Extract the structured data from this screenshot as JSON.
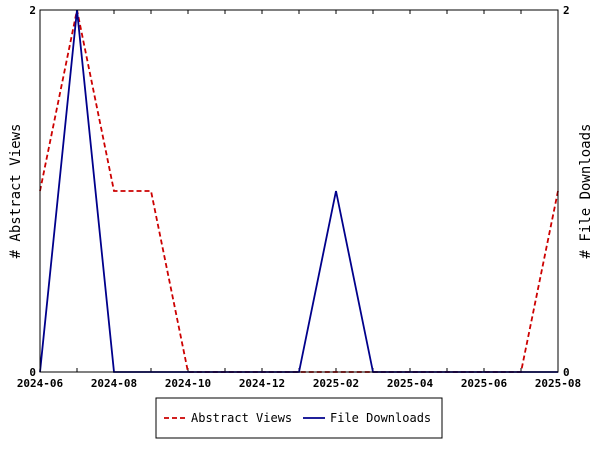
{
  "chart_data": {
    "type": "line",
    "x": [
      "2024-06",
      "2024-07",
      "2024-08",
      "2024-09",
      "2024-10",
      "2024-11",
      "2024-12",
      "2025-01",
      "2025-02",
      "2025-03",
      "2025-04",
      "2025-05",
      "2025-06",
      "2025-07",
      "2025-08"
    ],
    "x_tick_labels": [
      "2024-06",
      "2024-08",
      "2024-10",
      "2024-12",
      "2025-02",
      "2025-04",
      "2025-06",
      "2025-08"
    ],
    "series": [
      {
        "name": "Abstract Views",
        "values": [
          1,
          2,
          1,
          1,
          0,
          0,
          0,
          0,
          0,
          0,
          0,
          0,
          0,
          0,
          1
        ],
        "color": "#cc0000",
        "style": "dashed",
        "axis": "left"
      },
      {
        "name": "File Downloads",
        "values": [
          0,
          2,
          0,
          0,
          0,
          0,
          0,
          0,
          1,
          0,
          0,
          0,
          0,
          0,
          0
        ],
        "color": "#00008b",
        "style": "solid",
        "axis": "right"
      }
    ],
    "ylabel_left": "# Abstract Views",
    "ylabel_right": "# File Downloads",
    "ylim_left": [
      0,
      2
    ],
    "ylim_right": [
      0,
      2
    ],
    "y_tick_labels_left": [
      "0",
      "2"
    ],
    "y_tick_labels_right": [
      "0",
      "2"
    ],
    "legend_placement": "bottom",
    "grid": false
  }
}
